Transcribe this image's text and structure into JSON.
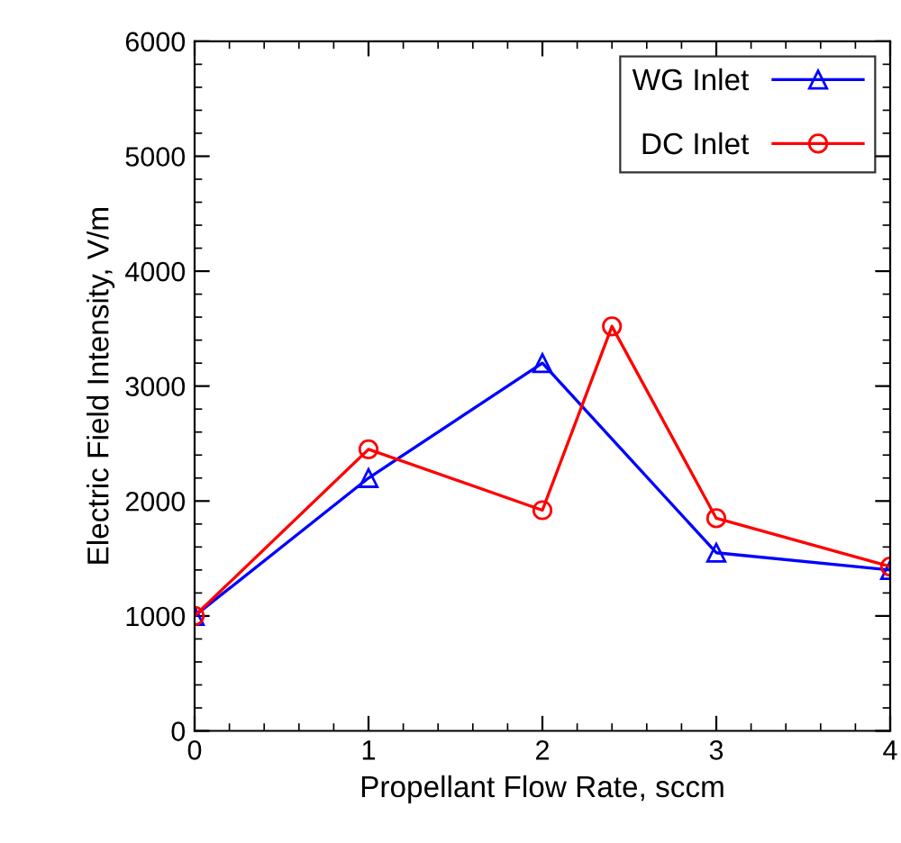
{
  "chart_data": {
    "type": "line",
    "xlabel": "Propellant Flow Rate, sccm",
    "ylabel": "Electric Field Intensity, V/m",
    "xlim": [
      0,
      4
    ],
    "xticks": [
      0,
      1,
      2,
      3,
      4
    ],
    "ylim": [
      0,
      6000
    ],
    "yticks": [
      0,
      1000,
      2000,
      3000,
      4000,
      5000,
      6000
    ],
    "grid": false,
    "legend": "top right",
    "series": [
      {
        "name": "WG Inlet",
        "color": "#0000ff",
        "marker": "triangle",
        "x": [
          0,
          1,
          2,
          3,
          4
        ],
        "values": [
          1000,
          2200,
          3200,
          1550,
          1400
        ]
      },
      {
        "name": "DC Inlet",
        "color": "#ff0000",
        "marker": "circle",
        "x": [
          0,
          1,
          2,
          2.4,
          3,
          4
        ],
        "values": [
          1000,
          2450,
          1920,
          3520,
          1850,
          1430
        ]
      }
    ]
  }
}
